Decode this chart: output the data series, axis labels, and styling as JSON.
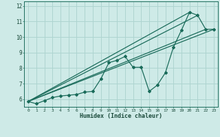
{
  "xlabel": "Humidex (Indice chaleur)",
  "background_color": "#ceeae7",
  "grid_color": "#aed4d0",
  "line_color": "#1a6b5a",
  "xlim": [
    -0.5,
    23.5
  ],
  "ylim": [
    5.5,
    12.3
  ],
  "xticks": [
    0,
    1,
    2,
    3,
    4,
    5,
    6,
    7,
    8,
    9,
    10,
    11,
    12,
    13,
    14,
    15,
    16,
    17,
    18,
    19,
    20,
    21,
    22,
    23
  ],
  "yticks": [
    6,
    7,
    8,
    9,
    10,
    11,
    12
  ],
  "main_line_x": [
    0,
    1,
    2,
    3,
    4,
    5,
    6,
    7,
    8,
    9,
    10,
    11,
    12,
    13,
    14,
    15,
    16,
    17,
    18,
    19,
    20,
    21,
    22,
    23
  ],
  "main_line_y": [
    5.85,
    5.7,
    5.9,
    6.1,
    6.2,
    6.25,
    6.3,
    6.45,
    6.5,
    7.3,
    8.35,
    8.5,
    8.75,
    8.05,
    8.05,
    6.5,
    6.9,
    7.7,
    9.35,
    10.45,
    11.6,
    11.4,
    10.5,
    10.5
  ],
  "line2_x": [
    0,
    23
  ],
  "line2_y": [
    5.85,
    10.5
  ],
  "line3_x": [
    0,
    22
  ],
  "line3_y": [
    5.85,
    10.5
  ],
  "line4_x": [
    0,
    21
  ],
  "line4_y": [
    5.85,
    11.4
  ],
  "line5_x": [
    0,
    20
  ],
  "line5_y": [
    5.85,
    11.6
  ]
}
